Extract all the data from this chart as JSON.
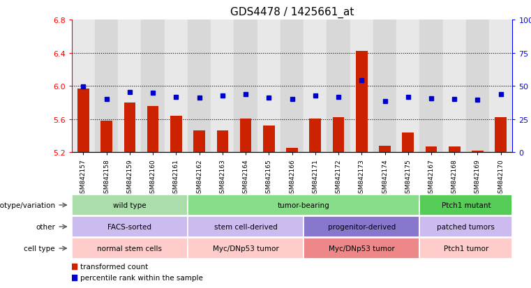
{
  "title": "GDS4478 / 1425661_at",
  "samples": [
    "GSM842157",
    "GSM842158",
    "GSM842159",
    "GSM842160",
    "GSM842161",
    "GSM842162",
    "GSM842163",
    "GSM842164",
    "GSM842165",
    "GSM842166",
    "GSM842171",
    "GSM842172",
    "GSM842173",
    "GSM842174",
    "GSM842175",
    "GSM842167",
    "GSM842168",
    "GSM842169",
    "GSM842170"
  ],
  "red_values": [
    5.97,
    5.58,
    5.8,
    5.76,
    5.64,
    5.46,
    5.46,
    5.61,
    5.52,
    5.25,
    5.61,
    5.62,
    6.42,
    5.28,
    5.44,
    5.27,
    5.27,
    5.22,
    5.62
  ],
  "blue_values": [
    5.99,
    5.84,
    5.93,
    5.92,
    5.87,
    5.86,
    5.88,
    5.9,
    5.86,
    5.84,
    5.88,
    5.87,
    6.07,
    5.82,
    5.87,
    5.85,
    5.84,
    5.83,
    5.9
  ],
  "ymin": 5.2,
  "ymax": 6.8,
  "yticks_left": [
    5.2,
    5.6,
    6.0,
    6.4,
    6.8
  ],
  "yticks_right_labels": [
    "0",
    "25",
    "50",
    "75",
    "100%"
  ],
  "dotted_lines": [
    5.6,
    6.0,
    6.4
  ],
  "row_labels": [
    "genotype/variation",
    "other",
    "cell type"
  ],
  "sections": {
    "genotype": [
      {
        "label": "wild type",
        "start": 0,
        "end": 5,
        "color": "#aaddaa"
      },
      {
        "label": "tumor-bearing",
        "start": 5,
        "end": 15,
        "color": "#88dd88"
      },
      {
        "label": "Ptch1 mutant",
        "start": 15,
        "end": 19,
        "color": "#55cc55"
      }
    ],
    "other": [
      {
        "label": "FACS-sorted",
        "start": 0,
        "end": 5,
        "color": "#ccbbee"
      },
      {
        "label": "stem cell-derived",
        "start": 5,
        "end": 10,
        "color": "#ccbbee"
      },
      {
        "label": "progenitor-derived",
        "start": 10,
        "end": 15,
        "color": "#8877cc"
      },
      {
        "label": "patched tumors",
        "start": 15,
        "end": 19,
        "color": "#ccbbee"
      }
    ],
    "celltype": [
      {
        "label": "normal stem cells",
        "start": 0,
        "end": 5,
        "color": "#ffcccc"
      },
      {
        "label": "Myc/DNp53 tumor",
        "start": 5,
        "end": 10,
        "color": "#ffcccc"
      },
      {
        "label": "Myc/DNp53 tumor",
        "start": 10,
        "end": 15,
        "color": "#ee8888"
      },
      {
        "label": "Ptch1 tumor",
        "start": 15,
        "end": 19,
        "color": "#ffcccc"
      }
    ]
  },
  "bar_color": "#CC2200",
  "dot_color": "#0000CC",
  "col_colors": [
    "#e8e8e8",
    "#d8d8d8"
  ],
  "legend_items": [
    {
      "color": "#CC2200",
      "label": "transformed count"
    },
    {
      "color": "#0000CC",
      "label": "percentile rank within the sample"
    }
  ]
}
